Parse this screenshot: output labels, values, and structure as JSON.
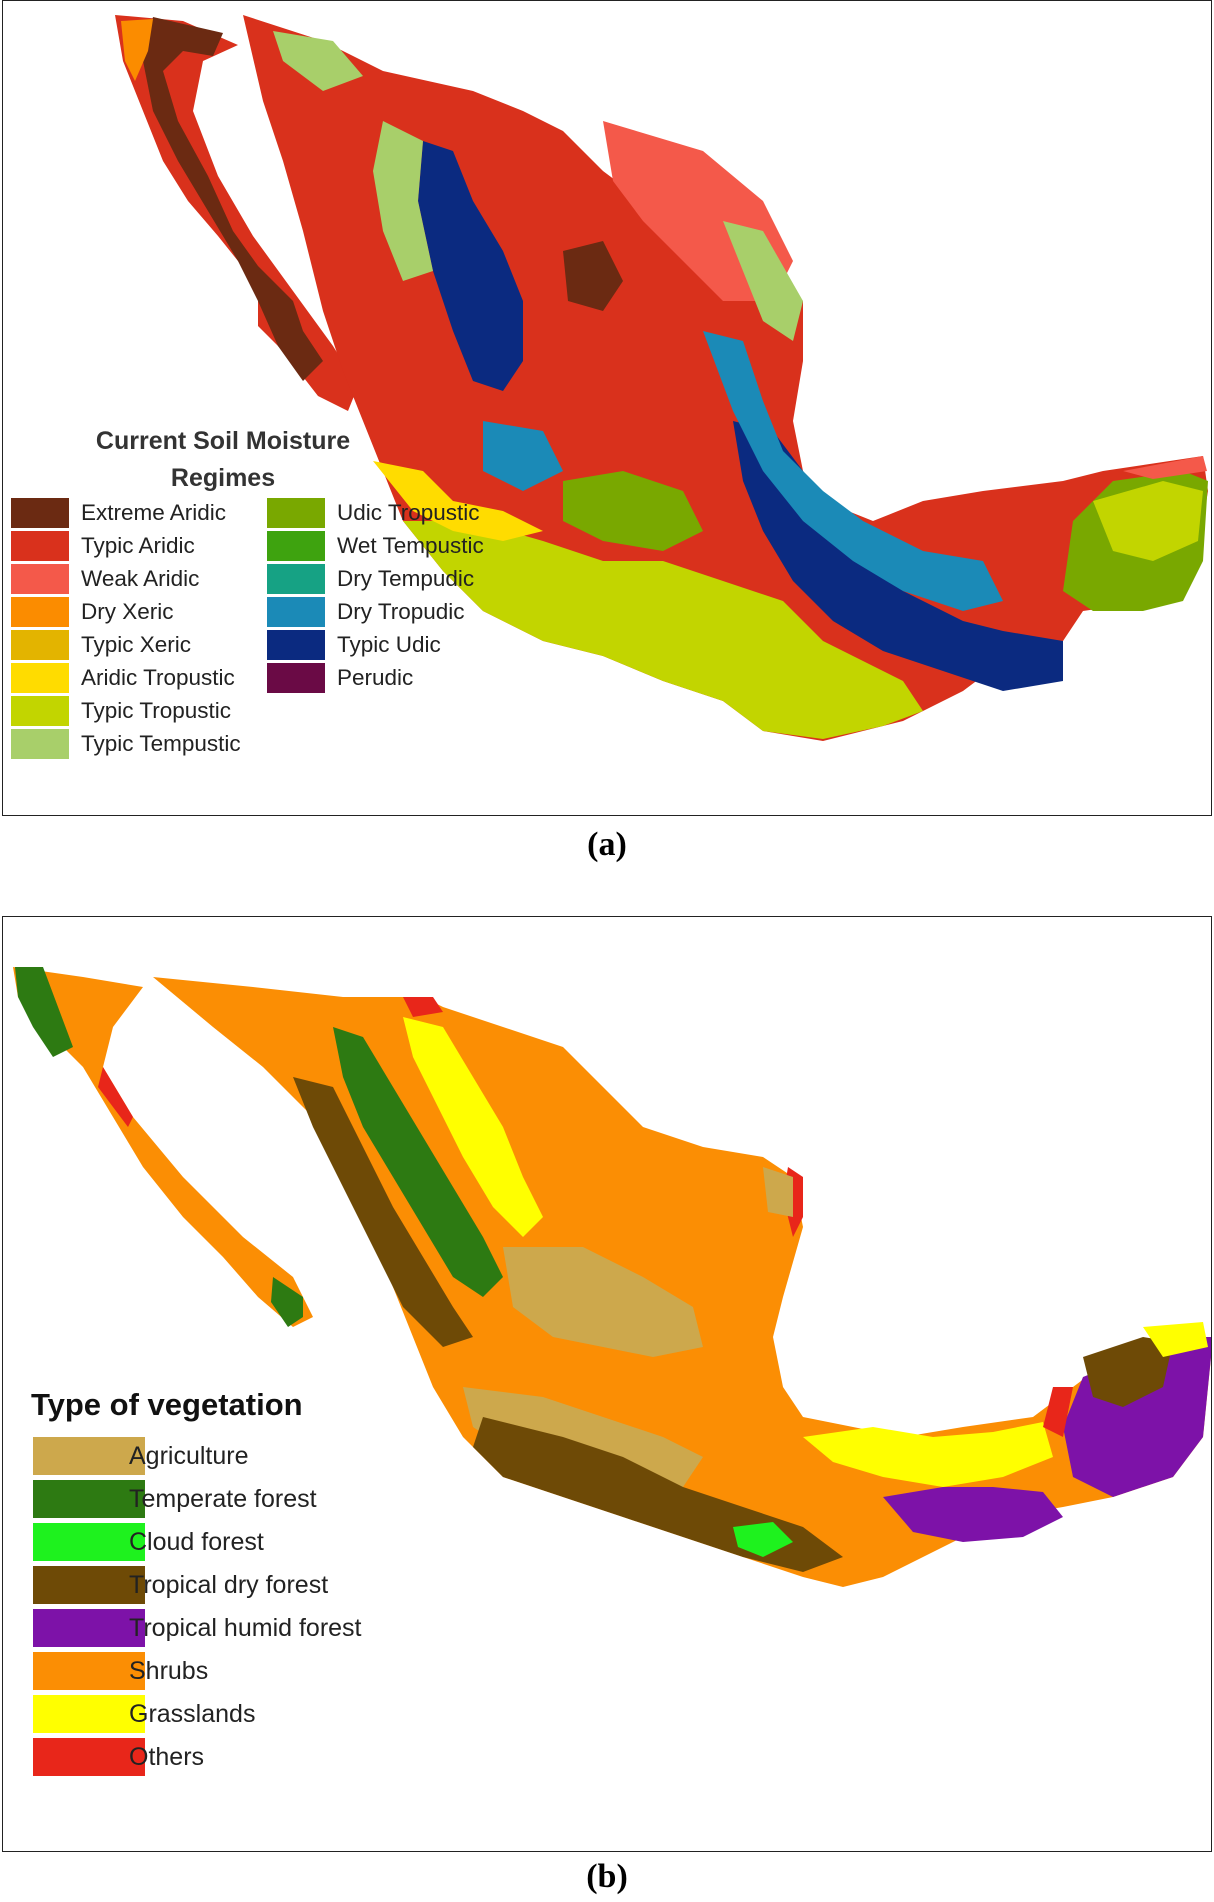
{
  "panel_a": {
    "legend_title": "Current Soil Moisture Regimes",
    "caption": "(a)",
    "legend_col1": [
      {
        "label": "Extreme Aridic",
        "color": "#6b2a12"
      },
      {
        "label": "Typic Aridic",
        "color": "#d9311c"
      },
      {
        "label": "Weak Aridic",
        "color": "#f4594a"
      },
      {
        "label": "Dry Xeric",
        "color": "#fb8c00"
      },
      {
        "label": "Typic Xeric",
        "color": "#e3b400"
      },
      {
        "label": "Aridic Tropustic",
        "color": "#ffdc00"
      },
      {
        "label": "Typic Tropustic",
        "color": "#c2d500"
      },
      {
        "label": "Typic Tempustic",
        "color": "#a8cf6a"
      }
    ],
    "legend_col2": [
      {
        "label": "Udic Tropustic",
        "color": "#79a800"
      },
      {
        "label": "Wet Tempustic",
        "color": "#3ea30f"
      },
      {
        "label": "Dry Tempudic",
        "color": "#16a284"
      },
      {
        "label": "Dry Tropudic",
        "color": "#1b8ab7"
      },
      {
        "label": "Typic Udic",
        "color": "#0b2a80"
      },
      {
        "label": "Perudic",
        "color": "#6a0a45"
      }
    ]
  },
  "panel_b": {
    "legend_title": "Type of vegetation",
    "caption": "(b)",
    "legend": [
      {
        "label": "Agriculture",
        "color": "#cda84c"
      },
      {
        "label": "Temperate forest",
        "color": "#2d7a12"
      },
      {
        "label": "Cloud forest",
        "color": "#1ef21e"
      },
      {
        "label": "Tropical dry forest",
        "color": "#6e4a06"
      },
      {
        "label": "Tropical humid forest",
        "color": "#7d12a8"
      },
      {
        "label": "Shrubs",
        "color": "#fb8e04"
      },
      {
        "label": "Grasslands",
        "color": "#ffff00"
      },
      {
        "label": "Others",
        "color": "#e8261a"
      }
    ]
  }
}
